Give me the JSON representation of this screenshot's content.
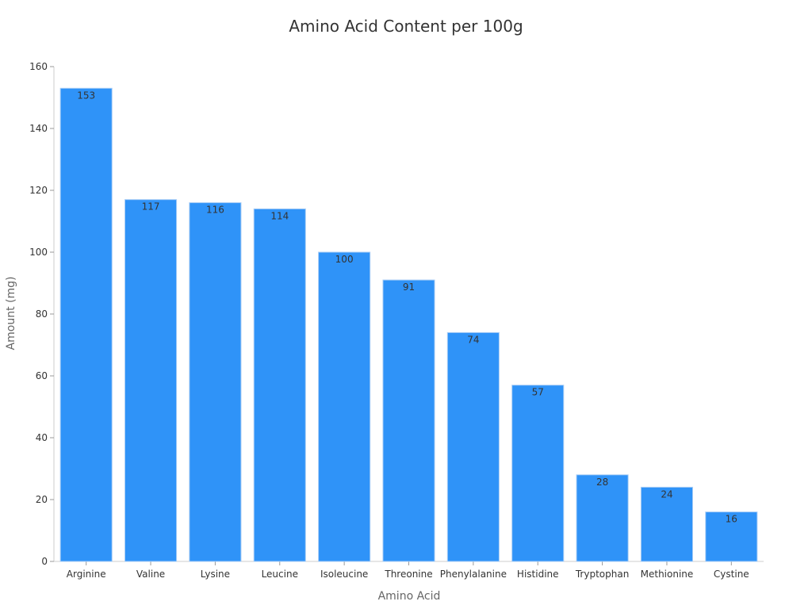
{
  "chart_data": {
    "type": "bar",
    "title": "Amino Acid Content per 100g",
    "xlabel": "Amino Acid",
    "ylabel": "Amount (mg)",
    "categories": [
      "Arginine",
      "Valine",
      "Lysine",
      "Leucine",
      "Isoleucine",
      "Threonine",
      "Phenylalanine",
      "Histidine",
      "Tryptophan",
      "Methionine",
      "Cystine"
    ],
    "values": [
      153,
      117,
      116,
      114,
      100,
      91,
      74,
      57,
      28,
      24,
      16
    ],
    "ylim": [
      0,
      160
    ],
    "yticks": [
      0,
      20,
      40,
      60,
      80,
      100,
      120,
      140,
      160
    ],
    "grid": false,
    "legend": "none",
    "bar_color": "#2f93f8"
  }
}
